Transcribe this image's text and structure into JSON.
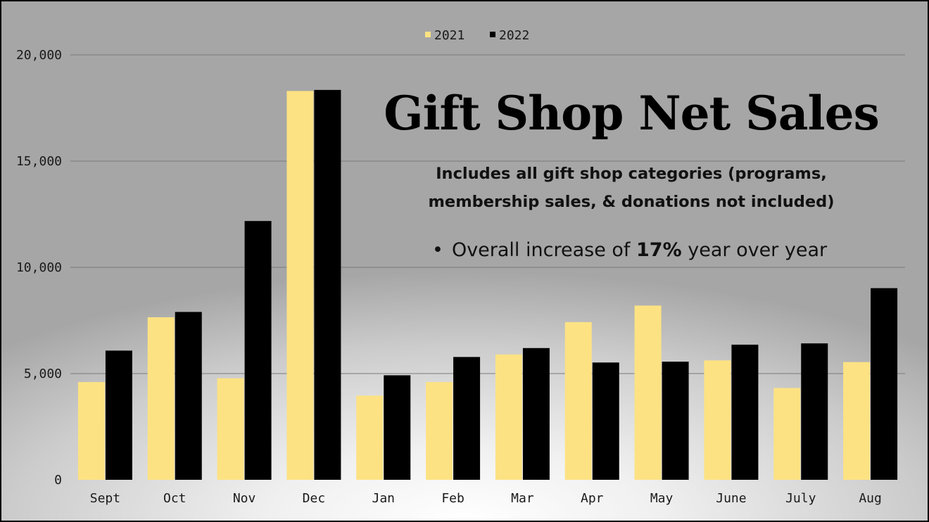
{
  "colors": {
    "series_2021": "#fde283",
    "series_2022": "#000000",
    "gridline": "#7a7a7a"
  },
  "chart_data": {
    "type": "bar",
    "title": "Gift Shop Net Sales",
    "subtitle": "Includes all gift shop categories (programs, membership sales, & donations not included)",
    "categories": [
      "Sept",
      "Oct",
      "Nov",
      "Dec",
      "Jan",
      "Feb",
      "Mar",
      "Apr",
      "May",
      "June",
      "July",
      "Aug"
    ],
    "series": [
      {
        "name": "2021",
        "values": [
          4600,
          7650,
          4780,
          18300,
          3960,
          4600,
          5900,
          7420,
          8200,
          5620,
          4320,
          5540
        ]
      },
      {
        "name": "2022",
        "values": [
          6080,
          7900,
          12180,
          18350,
          4920,
          5780,
          6200,
          5520,
          5560,
          6360,
          6420,
          9020
        ]
      }
    ],
    "ylim": [
      0,
      20000
    ],
    "yticks": [
      "0",
      "5,000",
      "10,000",
      "15,000",
      "20,000"
    ],
    "xlabel": "",
    "ylabel": "",
    "grid": "horizontal",
    "legend_position": "top-center",
    "annotations": {
      "bullet": "•",
      "prefix": "Overall increase of",
      "highlight": "17%",
      "suffix": "year over year"
    }
  }
}
